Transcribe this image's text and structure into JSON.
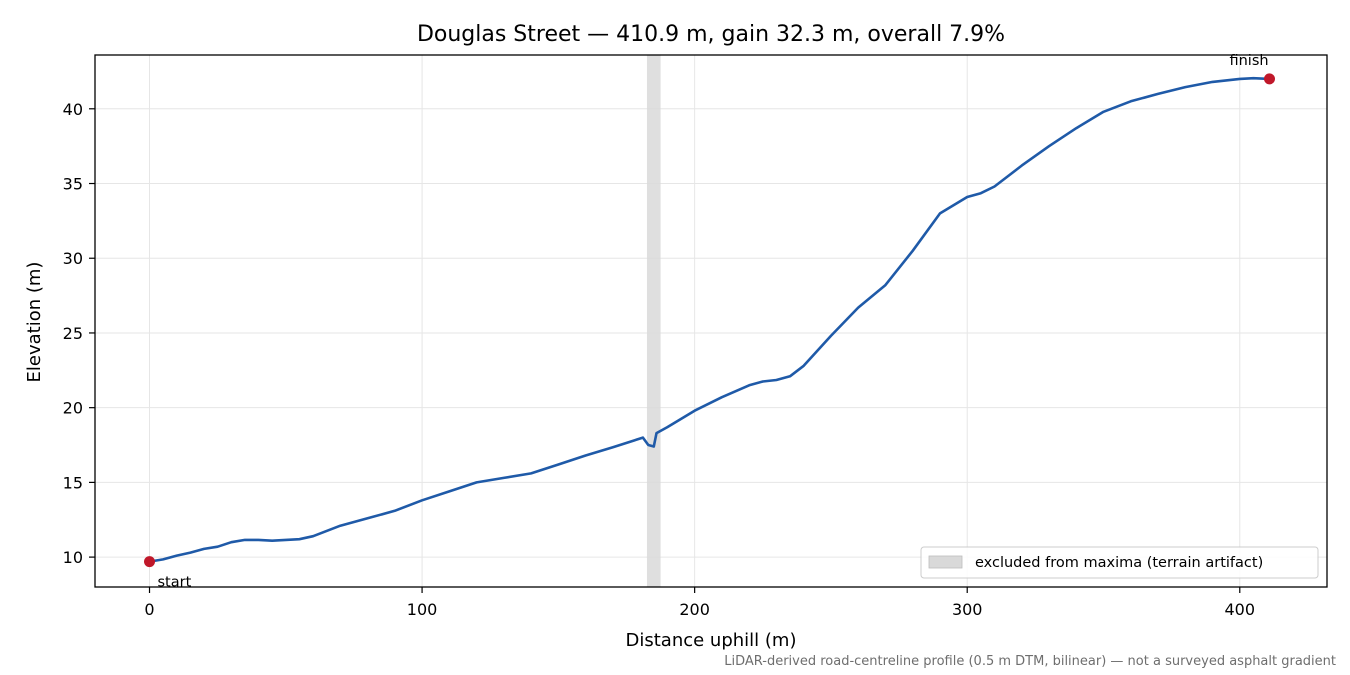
{
  "chart_data": {
    "type": "line",
    "title": "Douglas Street — 410.9 m, gain 32.3 m, overall 7.9%",
    "xlabel": "Distance uphill (m)",
    "ylabel": "Elevation (m)",
    "xlim": [
      -20,
      432
    ],
    "ylim": [
      8.0,
      43.6
    ],
    "xticks": [
      0,
      100,
      200,
      300,
      400
    ],
    "yticks": [
      10,
      15,
      20,
      25,
      30,
      35,
      40
    ],
    "grid": true,
    "footnote": "LiDAR-derived road-centreline profile (0.5 m DTM, bilinear) — not a surveyed asphalt gradient",
    "colors": {
      "line": "#1f5aa8",
      "markers": "#c0182a",
      "excluded_band": "#d9d9d9",
      "grid": "#e6e6e6"
    },
    "excluded_band": {
      "x_start": 182.5,
      "x_end": 187.5,
      "label": "excluded from maxima (terrain artifact)"
    },
    "legend_position": "lower-right",
    "series": [
      {
        "x": [
          0,
          5,
          10,
          15,
          20,
          25,
          30,
          35,
          40,
          45,
          50,
          55,
          60,
          70,
          80,
          90,
          100,
          110,
          120,
          130,
          140,
          150,
          160,
          170,
          181,
          183,
          185,
          186,
          190,
          200,
          210,
          220,
          225,
          230,
          235,
          240,
          250,
          260,
          270,
          280,
          290,
          300,
          305,
          310,
          320,
          330,
          340,
          350,
          360,
          370,
          380,
          390,
          400,
          405,
          410.9
        ],
        "y": [
          9.7,
          9.85,
          10.1,
          10.3,
          10.55,
          10.7,
          11.0,
          11.15,
          11.15,
          11.1,
          11.15,
          11.2,
          11.4,
          12.1,
          12.6,
          13.1,
          13.8,
          14.4,
          15.0,
          15.3,
          15.6,
          16.2,
          16.8,
          17.35,
          18.0,
          17.5,
          17.4,
          18.3,
          18.7,
          19.8,
          20.7,
          21.5,
          21.75,
          21.85,
          22.1,
          22.8,
          24.8,
          26.7,
          28.2,
          30.5,
          33.0,
          34.1,
          34.35,
          34.8,
          36.2,
          37.5,
          38.7,
          39.8,
          40.5,
          41.0,
          41.45,
          41.8,
          42.0,
          42.05,
          42.0
        ]
      }
    ],
    "annotations": [
      {
        "label": "start",
        "x": 0,
        "y": 9.7
      },
      {
        "label": "finish",
        "x": 410.9,
        "y": 42.0
      }
    ]
  }
}
